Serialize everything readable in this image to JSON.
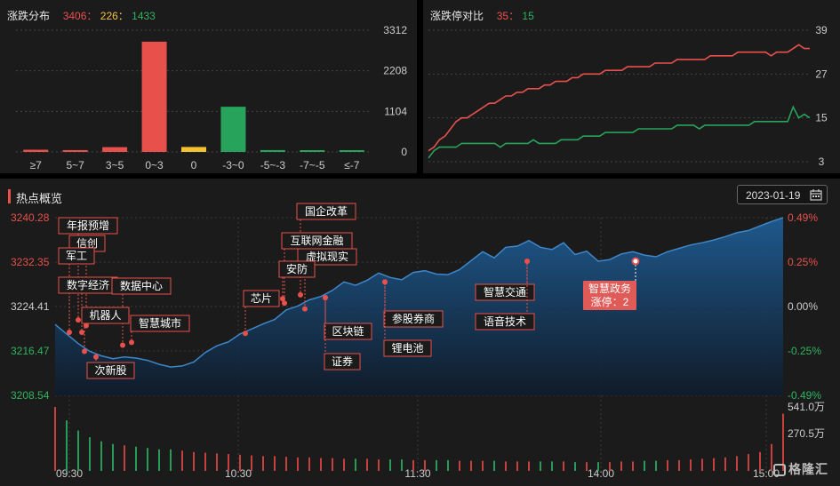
{
  "distribution": {
    "title": "涨跌分布",
    "up": "3406",
    "flat": "226",
    "down": "1433",
    "sep": "：",
    "chart_data": {
      "type": "bar",
      "categories": [
        "≥7",
        "5~7",
        "3~5",
        "0~3",
        "0",
        "-3~0",
        "-5~-3",
        "-7~-5",
        "≤-7"
      ],
      "values": [
        60,
        50,
        130,
        3000,
        135,
        1230,
        50,
        15,
        20
      ],
      "colors": [
        "#e8504c",
        "#e8504c",
        "#e8504c",
        "#e8504c",
        "#f2c230",
        "#27a35c",
        "#27a35c",
        "#27a35c",
        "#27a35c"
      ],
      "yticks": [
        "3312",
        "2208",
        "1104",
        "0"
      ],
      "ylim": [
        0,
        3312
      ]
    }
  },
  "limit": {
    "title": "涨跌停对比",
    "up": "35",
    "down": "15",
    "sep": "：",
    "chart_data": {
      "type": "line",
      "yticks": [
        "39",
        "27",
        "15",
        "3"
      ],
      "ylim": [
        3,
        39
      ],
      "series": [
        {
          "color": "#e8504c",
          "values": [
            6,
            7,
            9,
            10,
            12,
            14,
            15,
            15,
            16,
            17,
            18,
            19,
            19,
            20,
            21,
            21,
            22,
            22,
            23,
            23,
            23,
            24,
            24,
            25,
            25,
            25,
            26,
            26,
            27,
            27,
            27,
            27,
            28,
            28,
            28,
            28,
            29,
            29,
            29,
            29,
            29,
            30,
            30,
            30,
            30,
            31,
            31,
            31,
            31,
            31,
            31,
            32,
            32,
            32,
            32,
            32,
            33,
            33,
            33,
            33,
            33,
            33,
            32,
            33,
            33,
            33,
            34,
            35,
            34,
            34
          ]
        },
        {
          "color": "#27a35c",
          "values": [
            4,
            6,
            7,
            7,
            7,
            7,
            8,
            8,
            8,
            8,
            8,
            8,
            8,
            7,
            8,
            8,
            8,
            8,
            8,
            9,
            8,
            8,
            8,
            8,
            9,
            9,
            9,
            9,
            10,
            10,
            10,
            10,
            11,
            11,
            11,
            11,
            11,
            11,
            12,
            12,
            12,
            12,
            12,
            12,
            12,
            13,
            13,
            13,
            13,
            12,
            13,
            13,
            13,
            13,
            13,
            13,
            13,
            13,
            13,
            14,
            14,
            14,
            14,
            14,
            14,
            14,
            18,
            15,
            16,
            15
          ]
        }
      ]
    }
  },
  "hotspot": {
    "title": "热点概览",
    "date": "2023-01-19",
    "chart_data": {
      "type": "area",
      "ylim": [
        3208.54,
        3240.28
      ],
      "yticks_left": [
        "3240.28",
        "3232.35",
        "3224.41",
        "3216.47",
        "3208.54"
      ],
      "yticks_right": [
        "0.49%",
        "0.25%",
        "0.00%",
        "-0.25%",
        "-0.49%"
      ],
      "xticks": [
        "09:30",
        "10:30",
        "11:30",
        "14:00",
        "15:00"
      ],
      "vol_labels": [
        "541.0万",
        "270.5万"
      ],
      "price": [
        3221.2,
        3219.5,
        3217.8,
        3216.4,
        3215.6,
        3215.1,
        3215.4,
        3215.2,
        3214.8,
        3214.1,
        3213.6,
        3213.8,
        3214.5,
        3216.2,
        3217.4,
        3218.1,
        3219.5,
        3220.4,
        3221.3,
        3222.1,
        3223.8,
        3224.5,
        3225.6,
        3226.2,
        3227.3,
        3228.8,
        3228.2,
        3229.1,
        3230.4,
        3229.6,
        3229.2,
        3230.5,
        3230.8,
        3230.2,
        3230.1,
        3231.0,
        3232.6,
        3234.2,
        3233.1,
        3235.0,
        3235.2,
        3236.2,
        3235.0,
        3234.6,
        3235.8,
        3233.7,
        3234.3,
        3232.5,
        3232.8,
        3233.8,
        3234.2,
        3233.6,
        3233.3,
        3234.2,
        3234.8,
        3235.4,
        3235.8,
        3236.3,
        3236.9,
        3237.6,
        3238.0,
        3238.8,
        3239.6,
        3240.3
      ],
      "volume": [
        95,
        75,
        60,
        50,
        44,
        40,
        38,
        36,
        34,
        32,
        32,
        30,
        28,
        27,
        26,
        25,
        24,
        23,
        22,
        22,
        21,
        20,
        20,
        19,
        19,
        18,
        18,
        18,
        17,
        17,
        17,
        16,
        16,
        16,
        16,
        15,
        15,
        15,
        15,
        14,
        14,
        14,
        14,
        14,
        14,
        13,
        13,
        13,
        13,
        14,
        14,
        15,
        15,
        16,
        16,
        17,
        18,
        19,
        20,
        22,
        25,
        28,
        40,
        85
      ],
      "annotations": [
        {
          "text": "年报预增"
        },
        {
          "text": "信创"
        },
        {
          "text": "军工"
        },
        {
          "text": "数字经济"
        },
        {
          "text": "数据中心"
        },
        {
          "text": "机器人"
        },
        {
          "text": "智慧城市"
        },
        {
          "text": "次新股"
        },
        {
          "text": "芯片"
        },
        {
          "text": "国企改革"
        },
        {
          "text": "互联网金融"
        },
        {
          "text": "虚拟现实"
        },
        {
          "text": "安防"
        },
        {
          "text": "区块链"
        },
        {
          "text": "证券"
        },
        {
          "text": "参股券商"
        },
        {
          "text": "锂电池"
        },
        {
          "text": "智慧交通"
        },
        {
          "text": "语音技术"
        }
      ],
      "highlight": {
        "line1": "智慧政务",
        "line2": "涨停：2"
      }
    }
  },
  "brand": "格隆汇"
}
